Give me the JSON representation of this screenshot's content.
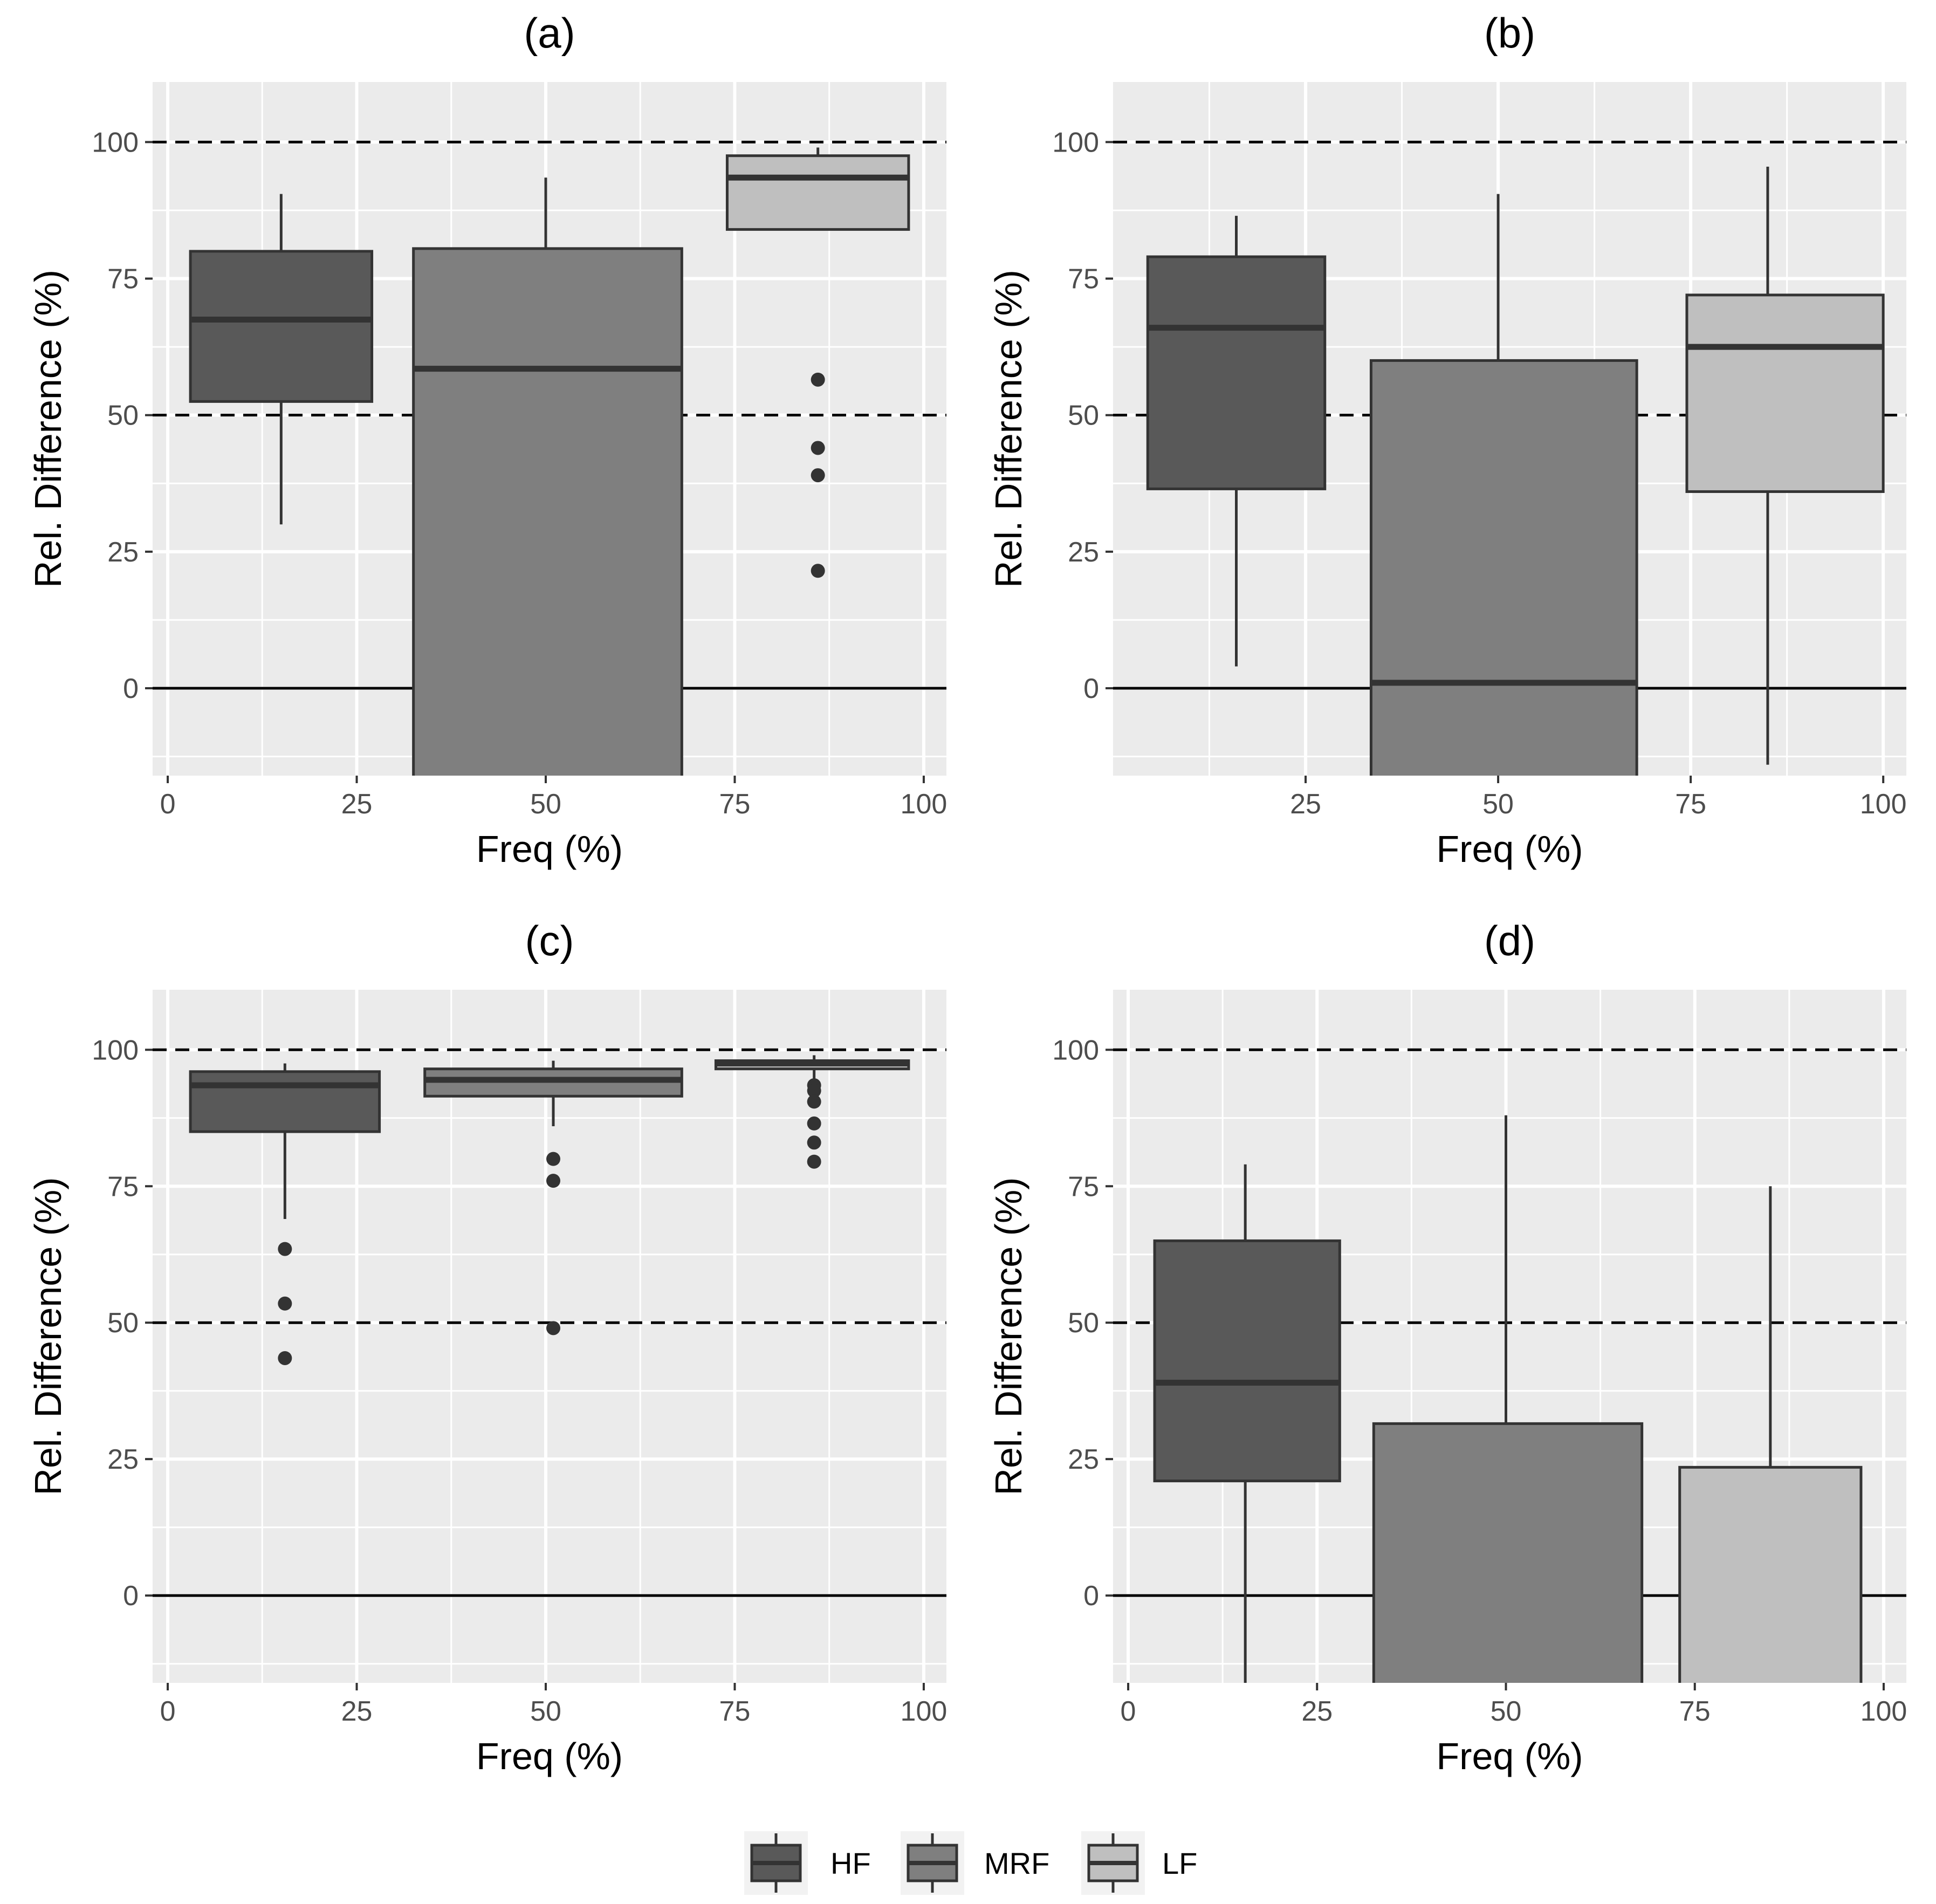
{
  "colors": {
    "HF": "#595959",
    "MRF": "#7f7f7f",
    "LF": "#bfbfbf",
    "panel_bg": "#ebebeb",
    "grid": "#ffffff",
    "outline": "#333333",
    "tick_text": "#4d4d4d"
  },
  "legend": {
    "items": [
      {
        "key": "HF",
        "label": "HF"
      },
      {
        "key": "MRF",
        "label": "MRF"
      },
      {
        "key": "LF",
        "label": "LF"
      }
    ]
  },
  "chart_data": [
    {
      "id": "a",
      "type": "boxplot",
      "title": "(a)",
      "xlabel": "Freq (%)",
      "ylabel": "Rel. Difference (%)",
      "xlim": [
        -2,
        103
      ],
      "ylim": [
        -16,
        111
      ],
      "xticks": [
        0,
        25,
        50,
        75,
        100
      ],
      "yticks": [
        0,
        25,
        50,
        75,
        100
      ],
      "hlines": [
        {
          "y": 100,
          "style": "dashed"
        },
        {
          "y": 50,
          "style": "dashed"
        },
        {
          "y": 0,
          "style": "solid"
        }
      ],
      "boxes": [
        {
          "group": "HF",
          "x": 15,
          "xmin": 3,
          "xmax": 27,
          "lower_whisker": 30,
          "q1": 52.5,
          "median": 67.5,
          "q3": 80,
          "upper_whisker": 90.5,
          "outliers": []
        },
        {
          "group": "MRF",
          "x": 50,
          "xmin": 32.5,
          "xmax": 68,
          "lower_whisker": -16,
          "q1": -16,
          "median": 58.5,
          "q3": 80.5,
          "upper_whisker": 93.5,
          "outliers": []
        },
        {
          "group": "LF",
          "x": 86,
          "xmin": 74,
          "xmax": 98,
          "lower_whisker": 84,
          "q1": 84,
          "median": 93.5,
          "q3": 97.5,
          "upper_whisker": 99,
          "outliers": [
            56.5,
            44,
            39,
            21.5
          ]
        }
      ]
    },
    {
      "id": "b",
      "type": "boxplot",
      "title": "(b)",
      "xlabel": "Freq (%)",
      "ylabel": "Rel. Difference (%)",
      "xlim": [
        0,
        103
      ],
      "ylim": [
        -16,
        111
      ],
      "xticks": [
        25,
        50,
        75,
        100
      ],
      "yticks": [
        0,
        25,
        50,
        75,
        100
      ],
      "hlines": [
        {
          "y": 100,
          "style": "dashed"
        },
        {
          "y": 50,
          "style": "dashed"
        },
        {
          "y": 0,
          "style": "solid"
        }
      ],
      "boxes": [
        {
          "group": "HF",
          "x": 16,
          "xmin": 4.5,
          "xmax": 27.5,
          "lower_whisker": 4,
          "q1": 36.5,
          "median": 66,
          "q3": 79,
          "upper_whisker": 86.5,
          "outliers": []
        },
        {
          "group": "MRF",
          "x": 50,
          "xmin": 33.5,
          "xmax": 68,
          "lower_whisker": -16,
          "q1": -16,
          "median": 1,
          "q3": 60,
          "upper_whisker": 90.5,
          "outliers": []
        },
        {
          "group": "LF",
          "x": 85,
          "xmin": 74.5,
          "xmax": 100,
          "lower_whisker": -14,
          "q1": 36,
          "median": 62.5,
          "q3": 72,
          "upper_whisker": 95.5,
          "outliers": []
        }
      ]
    },
    {
      "id": "c",
      "type": "boxplot",
      "title": "(c)",
      "xlabel": "Freq (%)",
      "ylabel": "Rel. Difference (%)",
      "xlim": [
        -2,
        103
      ],
      "ylim": [
        -16,
        111
      ],
      "xticks": [
        0,
        25,
        50,
        75,
        100
      ],
      "yticks": [
        0,
        25,
        50,
        75,
        100
      ],
      "hlines": [
        {
          "y": 100,
          "style": "dashed"
        },
        {
          "y": 50,
          "style": "dashed"
        },
        {
          "y": 0,
          "style": "solid"
        }
      ],
      "boxes": [
        {
          "group": "HF",
          "x": 15.5,
          "xmin": 3,
          "xmax": 28,
          "lower_whisker": 69,
          "q1": 85,
          "median": 93.5,
          "q3": 96,
          "upper_whisker": 97.5,
          "outliers": [
            63.5,
            53.5,
            43.5
          ]
        },
        {
          "group": "MRF",
          "x": 51,
          "xmin": 34,
          "xmax": 68,
          "lower_whisker": 86,
          "q1": 91.5,
          "median": 94.5,
          "q3": 96.5,
          "upper_whisker": 98,
          "outliers": [
            80,
            76,
            49
          ]
        },
        {
          "group": "LF",
          "x": 85.5,
          "xmin": 72.5,
          "xmax": 98,
          "lower_whisker": 94.5,
          "q1": 96.5,
          "median": 97.5,
          "q3": 98,
          "upper_whisker": 99,
          "outliers": [
            93.5,
            92.5,
            90.5,
            86.5,
            83,
            79.5
          ]
        }
      ]
    },
    {
      "id": "d",
      "type": "boxplot",
      "title": "(d)",
      "xlabel": "Freq (%)",
      "ylabel": "Rel. Difference (%)",
      "xlim": [
        -2,
        103
      ],
      "ylim": [
        -16,
        111
      ],
      "xticks": [
        0,
        25,
        50,
        75,
        100
      ],
      "yticks": [
        0,
        25,
        50,
        75,
        100
      ],
      "hlines": [
        {
          "y": 100,
          "style": "dashed"
        },
        {
          "y": 50,
          "style": "dashed"
        },
        {
          "y": 0,
          "style": "solid"
        }
      ],
      "boxes": [
        {
          "group": "HF",
          "x": 15.5,
          "xmin": 3.5,
          "xmax": 28,
          "lower_whisker": -16,
          "q1": 21,
          "median": 39,
          "q3": 65,
          "upper_whisker": 79,
          "outliers": []
        },
        {
          "group": "MRF",
          "x": 50,
          "xmin": 32.5,
          "xmax": 68,
          "lower_whisker": -16,
          "q1": -16,
          "median": null,
          "q3": 31.5,
          "upper_whisker": 88,
          "outliers": []
        },
        {
          "group": "LF",
          "x": 85,
          "xmin": 73,
          "xmax": 97,
          "lower_whisker": -16,
          "q1": -16,
          "median": null,
          "q3": 23.5,
          "upper_whisker": 75,
          "outliers": []
        }
      ]
    }
  ]
}
